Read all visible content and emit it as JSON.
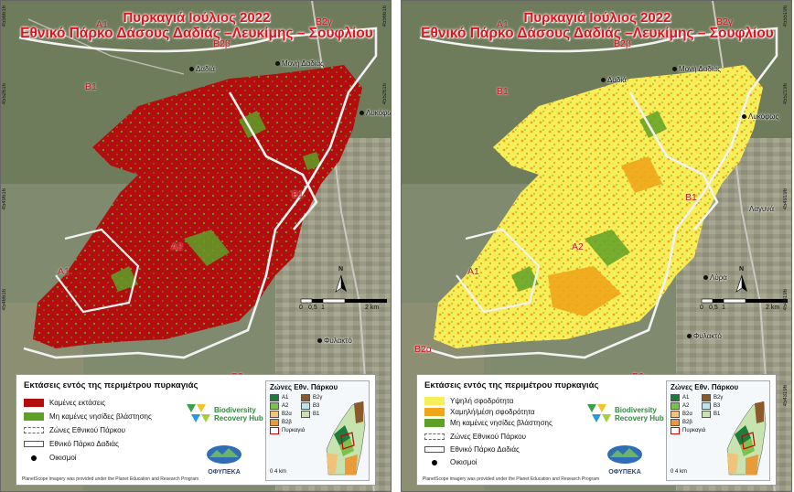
{
  "titles": {
    "line1": "Πυρκαγιά Ιούλιος 2022",
    "line2": "Εθνικό Πάρκο Δάσους Δαδιάς –Λευκίμης – Σουφλίου"
  },
  "zones": {
    "a1": "A1",
    "a2": "A2",
    "b1": "B1",
    "b2a": "B2α",
    "b2b": "B2β",
    "b2g": "B2γ"
  },
  "towns": {
    "dadia": "Δαδιά",
    "moni_dadias": "Μονή Δαδιάς",
    "lykofos": "Λυκόφως",
    "lykofos_right": "Λυκόφως",
    "lagyna": "Λαγυνά",
    "lyra": "Λύρα",
    "fylakto": "Φυλακτό"
  },
  "coords": {
    "left_a": "4556616",
    "left_b": "4552616",
    "left_c": "4549616",
    "left_d": "4546616",
    "left_e": "4543616",
    "left_f": "4540616",
    "right_a": "4555196",
    "right_b": "4552196",
    "right_c": "4549196",
    "right_d": "4546196",
    "right_e": "4543196",
    "right_f": "4540196"
  },
  "scale": {
    "left_ticks": [
      "0",
      "0,5",
      "1",
      "2 km"
    ],
    "right_ticks": [
      "0",
      "0,5",
      "1",
      "2 km"
    ],
    "north": "N"
  },
  "legend_left": {
    "title": "Εκτάσεις εντός της περιμέτρου πυρκαγιάς",
    "burned": "Καμένες εκτάσεις",
    "unburned": "Μη καμένες νησίδες βλάστησης",
    "zones": "Ζώνες Εθνικού Πάρκου",
    "park": "Εθνικό Πάρκο Δαδιάς",
    "settlements": "Οικισμοί"
  },
  "legend_right": {
    "title": "Εκτάσεις εντός της περιμέτρου πυρκαγιάς",
    "high": "Υψηλή σφοδρότητα",
    "low": "Χαμηλή/μέση σφοδρότητα",
    "unburned": "Μη καμένες νησίδες βλάστησης",
    "zones": "Ζώνες Εθνικού Πάρκου",
    "park": "Εθνικό Πάρκο Δαδιάς",
    "settlements": "Οικισμοί"
  },
  "hub": {
    "line1": "Biodiversity",
    "line2": "Recovery Hub"
  },
  "ofypeka": "ΟΦΥΠΕΚΑ",
  "credit": "PlanetScope imagery was provided under the Planet Education and Research Program",
  "inset": {
    "title": "Ζώνες Εθν. Πάρκου",
    "a1": "A1",
    "a2": "A2",
    "b1": "B1",
    "b2a": "B2α",
    "b2b": "B2β",
    "b2g": "B2γ",
    "b3": "B3",
    "fire": "Πυρκαγιά",
    "scale": "0   4 km"
  },
  "colors": {
    "burned": "#b30d10",
    "unburned": "#5fa127",
    "high": "#f6ef5a",
    "low": "#f0a51a",
    "zone_a1": "#1f7a3c",
    "zone_a2": "#7cc24a",
    "zone_b1": "#c7e3b0",
    "zone_b2a": "#f1c37a",
    "zone_b2b": "#e99a3b",
    "zone_b2g": "#8a5a2b",
    "zone_b3": "#bfe4ec"
  }
}
